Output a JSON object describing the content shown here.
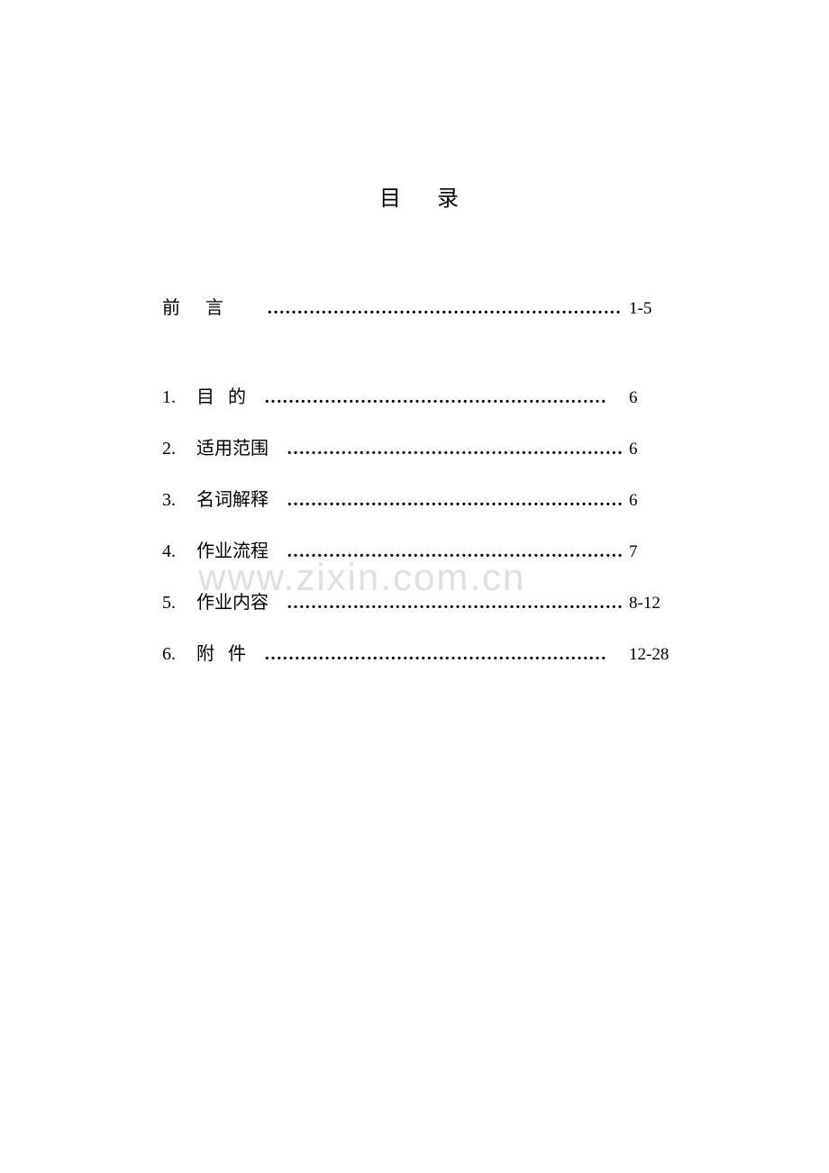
{
  "title": "目录",
  "watermark": "www.zixin.com.cn",
  "leader_char": "…",
  "preface": {
    "label": "前言",
    "page": "1-5"
  },
  "entries": [
    {
      "num": "1.",
      "label": "目   的",
      "page": "6",
      "spaced": false
    },
    {
      "num": "2.",
      "label": "适用范围",
      "page": "6",
      "spaced": false
    },
    {
      "num": "3.",
      "label": "名词解释",
      "page": "6",
      "spaced": false
    },
    {
      "num": "4.",
      "label": "作业流程",
      "page": "7",
      "spaced": false
    },
    {
      "num": "5.",
      "label": "作业内容",
      "page": "8-12",
      "spaced": false
    },
    {
      "num": "6.",
      "label": "附   件",
      "page": "12-28",
      "spaced": false
    }
  ],
  "colors": {
    "text": "#000000",
    "background": "#ffffff",
    "watermark": "#e0e0e0"
  }
}
